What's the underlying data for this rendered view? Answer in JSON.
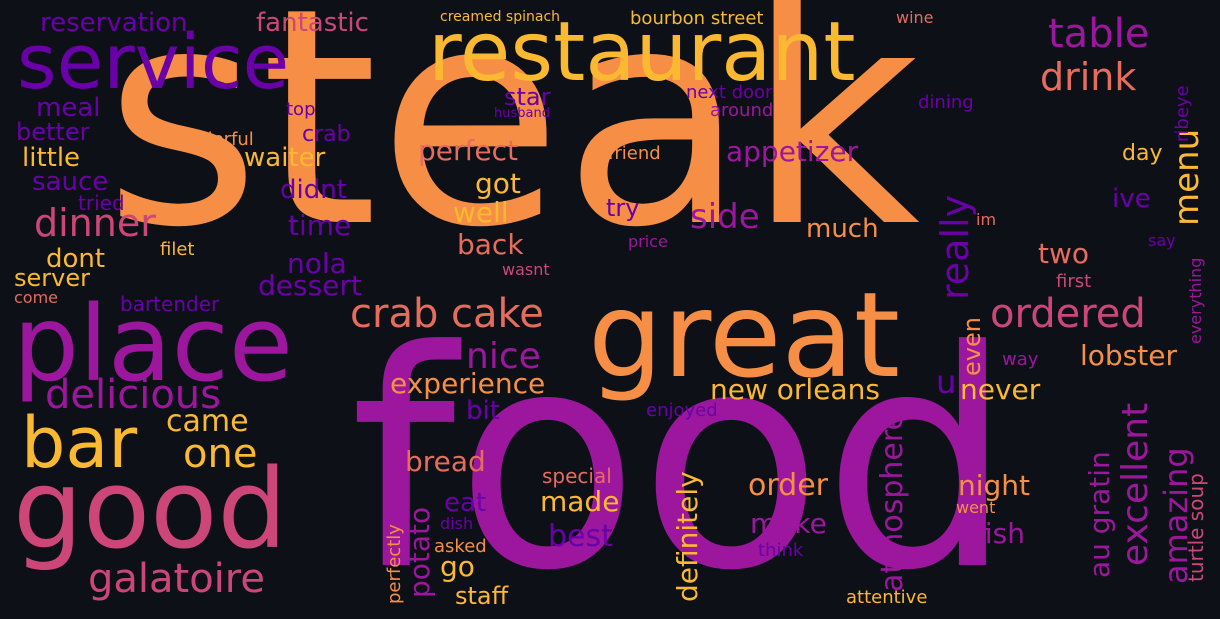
{
  "palette": {
    "background": "#0d1117",
    "orange": "#f68f45",
    "yellow": "#fbb932",
    "purple": "#9c179e",
    "violet": "#6a00a8",
    "pink": "#cc4778",
    "salmon": "#e66c5c"
  },
  "words": {
    "steak": "steak",
    "food": "food",
    "great": "great",
    "restaurant": "restaurant",
    "service": "service",
    "place": "place",
    "good": "good",
    "bar": "bar",
    "delicious": "delicious",
    "galatoire": "galatoire",
    "crab_cake": "crab cake",
    "ordered": "ordered",
    "dinner": "dinner",
    "nice": "nice",
    "table": "table",
    "drink": "drink",
    "menu": "menu",
    "really": "really",
    "side": "side",
    "appetizer": "appetizer",
    "experience": "experience",
    "new_orleans": "new orleans",
    "excellent": "excellent",
    "amazing": "amazing",
    "one": "one",
    "came": "came",
    "perfect": "perfect",
    "got": "got",
    "well": "well",
    "back": "back",
    "waiter": "waiter",
    "didnt": "didnt",
    "time": "time",
    "nola": "nola",
    "dessert": "dessert",
    "bread": "bread",
    "potato": "potato",
    "go": "go",
    "staff": "staff",
    "eat": "eat",
    "made": "made",
    "best": "best",
    "definitely": "definitely",
    "order": "order",
    "make": "make",
    "atmosphere": "atmosphere",
    "night": "night",
    "fish": "fish",
    "au_gratin": "au gratin",
    "turtle_soup": "turtle soup",
    "lobster": "lobster",
    "never": "never",
    "u": "u",
    "even": "even",
    "two": "two",
    "ive": "ive",
    "day": "day",
    "much": "much",
    "try": "try",
    "bit": "bit",
    "reservation": "reservation",
    "fantastic": "fantastic",
    "creamed_spinach": "creamed spinach",
    "bourbon_street": "bourbon street",
    "wine": "wine",
    "meal": "meal",
    "better": "better",
    "little": "little",
    "sauce": "sauce",
    "tried": "tried",
    "dont": "dont",
    "server": "server",
    "filet": "filet",
    "come": "come",
    "bartender": "bartender",
    "crab": "crab",
    "top": "top",
    "wonderful": "wonderful",
    "star": "star",
    "husband": "husband",
    "friend": "friend",
    "next_door": "next door",
    "around": "around",
    "dining": "dining",
    "ribeye": "ribeye",
    "im": "im",
    "say": "say",
    "first": "first",
    "everything": "everything",
    "way": "way",
    "price": "price",
    "wasnt": "wasnt",
    "enjoyed": "enjoyed",
    "special": "special",
    "dish": "dish",
    "asked": "asked",
    "perfectly": "perfectly",
    "think": "think",
    "went": "went",
    "attentive": "attentive"
  }
}
